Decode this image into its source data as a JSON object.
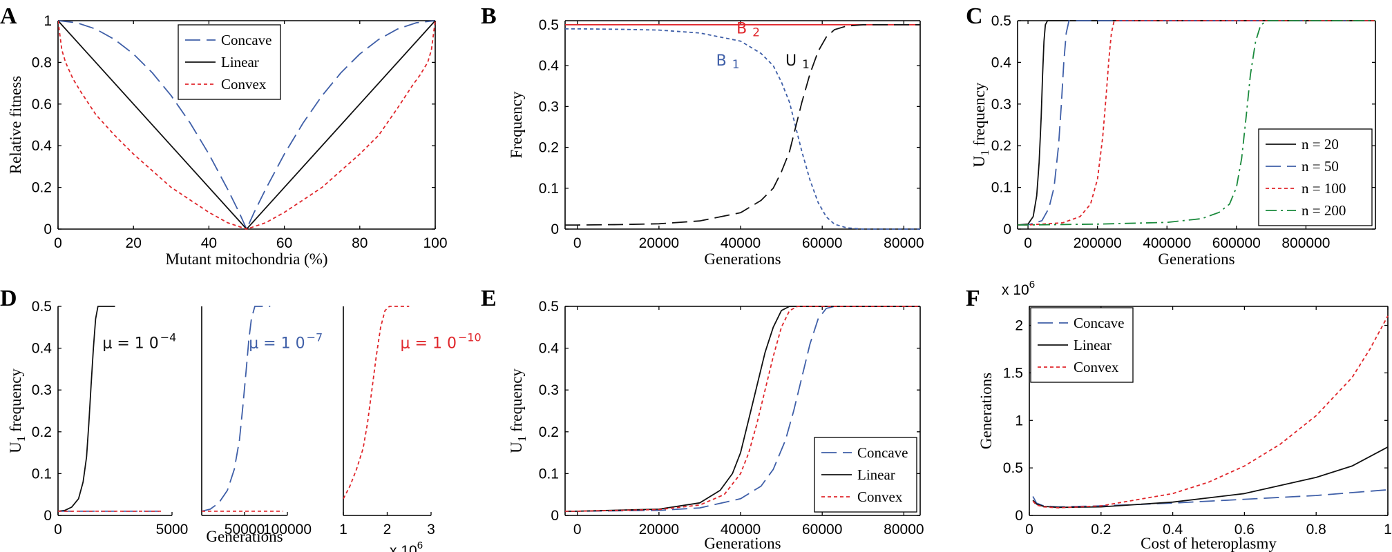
{
  "colors": {
    "blue": "#3f5fa8",
    "black": "#111111",
    "red": "#e0262b",
    "green": "#1a8a3c"
  },
  "chart_data": [
    {
      "id": "A",
      "panel_label": "A",
      "type": "line",
      "xlabel": "Mutant mitochondria (%)",
      "ylabel": "Relative fitness",
      "xlim": [
        0,
        100
      ],
      "ylim": [
        0,
        1
      ],
      "xticks": [
        0,
        20,
        40,
        60,
        80,
        100
      ],
      "yticks": [
        0,
        0.2,
        0.4,
        0.6,
        0.8,
        1
      ],
      "xtick_labels": [
        "0",
        "20",
        "40",
        "60",
        "80",
        "100"
      ],
      "ytick_labels": [
        "0",
        "0.2",
        "0.4",
        "0.6",
        "0.8",
        "1"
      ],
      "legend": {
        "placement": "top-center",
        "entries": [
          "Concave",
          "Linear",
          "Convex"
        ]
      },
      "series": [
        {
          "name": "Concave",
          "color": "blue",
          "style": "longdash",
          "x": [
            0,
            5,
            10,
            15,
            20,
            25,
            30,
            35,
            40,
            45,
            48,
            50,
            52,
            55,
            60,
            65,
            70,
            75,
            80,
            85,
            90,
            95,
            100
          ],
          "y": [
            1,
            0.99,
            0.96,
            0.91,
            0.84,
            0.75,
            0.64,
            0.51,
            0.36,
            0.19,
            0.08,
            0,
            0.08,
            0.19,
            0.36,
            0.51,
            0.64,
            0.75,
            0.84,
            0.91,
            0.96,
            0.99,
            1
          ]
        },
        {
          "name": "Linear",
          "color": "black",
          "style": "solid",
          "x": [
            0,
            50,
            100
          ],
          "y": [
            1,
            0,
            1
          ]
        },
        {
          "name": "Convex",
          "color": "red",
          "style": "dash",
          "x": [
            0,
            1,
            2,
            4,
            6,
            10,
            15,
            20,
            25,
            30,
            35,
            40,
            45,
            50,
            55,
            60,
            65,
            70,
            75,
            80,
            85,
            90,
            94,
            96,
            98,
            99,
            100
          ],
          "y": [
            1,
            0.86,
            0.8,
            0.72,
            0.66,
            0.55,
            0.45,
            0.36,
            0.28,
            0.2,
            0.14,
            0.08,
            0.03,
            0,
            0.03,
            0.08,
            0.14,
            0.2,
            0.28,
            0.36,
            0.45,
            0.58,
            0.69,
            0.74,
            0.8,
            0.86,
            1
          ]
        }
      ]
    },
    {
      "id": "B",
      "panel_label": "B",
      "type": "line",
      "xlabel": "Generations",
      "ylabel": "Frequency",
      "xlim": [
        -3000,
        84000
      ],
      "ylim": [
        0,
        0.51
      ],
      "xticks": [
        0,
        20000,
        40000,
        60000,
        80000
      ],
      "yticks": [
        0,
        0.1,
        0.2,
        0.3,
        0.4,
        0.5
      ],
      "xtick_labels": [
        "0",
        "20000",
        "40000",
        "60000",
        "80000"
      ],
      "ytick_labels": [
        "0",
        "0.1",
        "0.2",
        "0.3",
        "0.4",
        "0.5"
      ],
      "annotations": [
        {
          "text": "B",
          "sub": "2",
          "color": "red",
          "x": 39000,
          "y": 0.479
        },
        {
          "text": "B",
          "sub": "1",
          "color": "blue",
          "x": 34000,
          "y": 0.4
        },
        {
          "text": "U",
          "sub": "1",
          "color": "black",
          "x": 51000,
          "y": 0.4
        }
      ],
      "series": [
        {
          "name": "B2",
          "color": "red",
          "style": "solid",
          "x": [
            -3000,
            84000
          ],
          "y": [
            0.5,
            0.5
          ]
        },
        {
          "name": "B1",
          "color": "blue",
          "style": "dash",
          "x": [
            -3000,
            0,
            10000,
            20000,
            30000,
            40000,
            45000,
            48000,
            50000,
            52000,
            53500,
            55000,
            57000,
            59000,
            61000,
            63000,
            66000,
            70000,
            84000
          ],
          "y": [
            0.49,
            0.49,
            0.489,
            0.487,
            0.48,
            0.46,
            0.43,
            0.4,
            0.36,
            0.31,
            0.25,
            0.19,
            0.12,
            0.065,
            0.03,
            0.012,
            0.003,
            0,
            0
          ]
        },
        {
          "name": "U1",
          "color": "black",
          "style": "longdash",
          "x": [
            -3000,
            0,
            10000,
            20000,
            30000,
            40000,
            45000,
            48000,
            50000,
            52000,
            53500,
            55000,
            57000,
            59000,
            61000,
            63000,
            66000,
            70000,
            84000
          ],
          "y": [
            0.01,
            0.01,
            0.011,
            0.013,
            0.02,
            0.04,
            0.07,
            0.1,
            0.14,
            0.19,
            0.25,
            0.31,
            0.38,
            0.435,
            0.47,
            0.488,
            0.497,
            0.5,
            0.5
          ]
        }
      ]
    },
    {
      "id": "C",
      "panel_label": "C",
      "type": "line",
      "xlabel": "Generations",
      "ylabel": "U",
      "ylabel_sub": "1",
      "ylabel_tail": " frequency",
      "xlim": [
        -30000,
        1000000
      ],
      "ylim": [
        0,
        0.5
      ],
      "xticks": [
        0,
        200000,
        400000,
        600000,
        800000
      ],
      "yticks": [
        0,
        0.1,
        0.2,
        0.3,
        0.4,
        0.5
      ],
      "xtick_labels": [
        "0",
        "200000",
        "400000",
        "600000",
        "800000"
      ],
      "ytick_labels": [
        "0",
        "0.1",
        "0.2",
        "0.3",
        "0.4",
        "0.5"
      ],
      "legend": {
        "placement": "bottom-right",
        "entries": [
          "n = 20",
          "n = 50",
          "n = 100",
          "n = 200"
        ]
      },
      "series": [
        {
          "name": "n = 20",
          "color": "black",
          "style": "solid",
          "x": [
            -30000,
            0,
            15000,
            25000,
            32000,
            38000,
            42000,
            46000,
            50000,
            56000,
            1000000
          ],
          "y": [
            0.01,
            0.012,
            0.03,
            0.08,
            0.16,
            0.27,
            0.37,
            0.45,
            0.49,
            0.5,
            0.5
          ]
        },
        {
          "name": "n = 50",
          "color": "blue",
          "style": "longdash",
          "x": [
            -30000,
            0,
            40000,
            60000,
            75000,
            88000,
            96000,
            103000,
            110000,
            118000,
            1000000
          ],
          "y": [
            0.01,
            0.01,
            0.02,
            0.05,
            0.1,
            0.2,
            0.3,
            0.4,
            0.47,
            0.5,
            0.5
          ]
        },
        {
          "name": "n = 100",
          "color": "red",
          "style": "dash",
          "x": [
            -30000,
            0,
            100000,
            150000,
            180000,
            200000,
            215000,
            225000,
            233000,
            240000,
            248000,
            1000000
          ],
          "y": [
            0.01,
            0.01,
            0.015,
            0.03,
            0.06,
            0.12,
            0.22,
            0.32,
            0.41,
            0.47,
            0.5,
            0.5
          ]
        },
        {
          "name": "n = 200",
          "color": "green",
          "style": "dashdot",
          "x": [
            -30000,
            0,
            200000,
            400000,
            500000,
            550000,
            580000,
            600000,
            615000,
            628000,
            640000,
            655000,
            670000,
            690000,
            1000000
          ],
          "y": [
            0.01,
            0.01,
            0.012,
            0.016,
            0.025,
            0.04,
            0.06,
            0.1,
            0.17,
            0.27,
            0.37,
            0.45,
            0.49,
            0.5,
            0.5
          ]
        }
      ]
    },
    {
      "id": "D",
      "panel_label": "D",
      "type": "line",
      "group": "D",
      "ylabel": "U",
      "ylabel_sub": "1",
      "ylabel_tail": " frequency",
      "xlim": [
        0,
        5000
      ],
      "ylim": [
        0,
        0.5
      ],
      "xticks": [
        0,
        5000
      ],
      "yticks": [
        0,
        0.1,
        0.2,
        0.3,
        0.4,
        0.5
      ],
      "xtick_labels": [
        "0",
        "5000"
      ],
      "ytick_labels": [
        "0",
        "0.1",
        "0.2",
        "0.3",
        "0.4",
        "0.5"
      ],
      "annotations": [
        {
          "text": "μ = 1 0",
          "sup": "−4",
          "color": "black",
          "x": 1950,
          "y": 0.4
        }
      ],
      "series": [
        {
          "name": "μ = 10^-4",
          "color": "black",
          "style": "solid",
          "x": [
            0,
            300,
            600,
            900,
            1100,
            1250,
            1350,
            1450,
            1550,
            1650,
            1750,
            1850,
            2500
          ],
          "y": [
            0.01,
            0.012,
            0.02,
            0.04,
            0.08,
            0.14,
            0.22,
            0.31,
            0.4,
            0.47,
            0.5,
            0.5,
            0.5
          ]
        },
        {
          "name": "baseline-blue",
          "color": "blue",
          "style": "longdash",
          "x": [
            0,
            4600
          ],
          "y": [
            0.01,
            0.01
          ]
        },
        {
          "name": "baseline-red",
          "color": "red",
          "style": "dash",
          "x": [
            0,
            4600
          ],
          "y": [
            0.01,
            0.01
          ]
        }
      ]
    },
    {
      "id": "D2",
      "type": "line",
      "group": "D",
      "xlabel": "Generations",
      "xlim": [
        0,
        100000
      ],
      "ylim": [
        0,
        0.5
      ],
      "xticks": [
        50000,
        100000
      ],
      "xtick_labels": [
        "50000",
        "100000"
      ],
      "annotations": [
        {
          "text": "μ = 1 0",
          "sup": "−7",
          "color": "blue",
          "x": 55000,
          "y": 0.4
        }
      ],
      "series": [
        {
          "name": "μ = 10^-7",
          "color": "blue",
          "style": "longdash",
          "x": [
            0,
            10000,
            20000,
            30000,
            38000,
            44000,
            48000,
            52000,
            55000,
            58000,
            62000,
            66000,
            80000
          ],
          "y": [
            0.01,
            0.015,
            0.03,
            0.06,
            0.11,
            0.18,
            0.26,
            0.35,
            0.42,
            0.47,
            0.5,
            0.5,
            0.5
          ]
        },
        {
          "name": "baseline-red",
          "color": "red",
          "style": "dash",
          "x": [
            0,
            95000
          ],
          "y": [
            0.01,
            0.01
          ]
        }
      ]
    },
    {
      "id": "D3",
      "type": "line",
      "group": "D",
      "xlim": [
        1000000,
        3000000
      ],
      "ylim": [
        0,
        0.5
      ],
      "xticks": [
        1000000,
        2000000,
        3000000
      ],
      "xtick_labels": [
        "1",
        "2",
        "3"
      ],
      "x_multiplier": "x 10",
      "x_multiplier_exp": "6",
      "annotations": [
        {
          "text": "μ = 1 0",
          "sup": "−10",
          "color": "red",
          "x": 2300000,
          "y": 0.4
        }
      ],
      "series": [
        {
          "name": "μ = 10^-10",
          "color": "red",
          "style": "dash",
          "x": [
            1000000,
            1150000,
            1300000,
            1450000,
            1550000,
            1650000,
            1750000,
            1850000,
            1950000,
            2050000,
            2150000,
            2500000
          ],
          "y": [
            0.04,
            0.07,
            0.11,
            0.16,
            0.22,
            0.3,
            0.38,
            0.45,
            0.49,
            0.5,
            0.5,
            0.5
          ]
        }
      ]
    },
    {
      "id": "E",
      "panel_label": "E",
      "type": "line",
      "xlabel": "Generations",
      "ylabel": "U",
      "ylabel_sub": "1",
      "ylabel_tail": " frequency",
      "xlim": [
        -3000,
        84000
      ],
      "ylim": [
        0,
        0.5
      ],
      "xticks": [
        0,
        20000,
        40000,
        60000,
        80000
      ],
      "yticks": [
        0,
        0.1,
        0.2,
        0.3,
        0.4,
        0.5
      ],
      "xtick_labels": [
        "0",
        "20000",
        "40000",
        "60000",
        "80000"
      ],
      "ytick_labels": [
        "0",
        "0.1",
        "0.2",
        "0.3",
        "0.4",
        "0.5"
      ],
      "legend": {
        "placement": "bottom-right",
        "entries": [
          "Concave",
          "Linear",
          "Convex"
        ]
      },
      "series": [
        {
          "name": "Concave",
          "color": "blue",
          "style": "longdash",
          "x": [
            -3000,
            0,
            20000,
            30000,
            40000,
            45000,
            48000,
            51000,
            53000,
            55000,
            57000,
            59000,
            61000,
            63000,
            84000
          ],
          "y": [
            0.01,
            0.01,
            0.012,
            0.018,
            0.04,
            0.07,
            0.11,
            0.18,
            0.25,
            0.33,
            0.41,
            0.47,
            0.495,
            0.5,
            0.5
          ]
        },
        {
          "name": "Linear",
          "color": "black",
          "style": "solid",
          "x": [
            -3000,
            0,
            20000,
            30000,
            35000,
            38000,
            40000,
            42000,
            44000,
            46000,
            48000,
            50000,
            52000,
            84000
          ],
          "y": [
            0.01,
            0.01,
            0.015,
            0.03,
            0.06,
            0.1,
            0.15,
            0.23,
            0.31,
            0.39,
            0.45,
            0.49,
            0.5,
            0.5
          ]
        },
        {
          "name": "Convex",
          "color": "red",
          "style": "dash",
          "x": [
            -3000,
            0,
            20000,
            30000,
            36000,
            40000,
            42000,
            44000,
            46000,
            48000,
            50000,
            52000,
            54000,
            84000
          ],
          "y": [
            0.01,
            0.01,
            0.014,
            0.025,
            0.05,
            0.1,
            0.15,
            0.22,
            0.3,
            0.38,
            0.45,
            0.49,
            0.5,
            0.5
          ]
        }
      ]
    },
    {
      "id": "F",
      "panel_label": "F",
      "type": "line",
      "xlabel": "Cost of heteroplasmy",
      "ylabel": "Generations",
      "xlim": [
        0,
        1
      ],
      "ylim": [
        0,
        2200000
      ],
      "xticks": [
        0,
        0.2,
        0.4,
        0.6,
        0.8,
        1
      ],
      "yticks": [
        0,
        500000,
        1000000,
        1500000,
        2000000
      ],
      "xtick_labels": [
        "0",
        "0.2",
        "0.4",
        "0.6",
        "0.8",
        "1"
      ],
      "ytick_labels": [
        "0",
        "0.5",
        "1",
        "1.5",
        "2"
      ],
      "y_multiplier": "x 10",
      "y_multiplier_exp": "6",
      "legend": {
        "placement": "top-left",
        "entries": [
          "Concave",
          "Linear",
          "Convex"
        ]
      },
      "series": [
        {
          "name": "Concave",
          "color": "blue",
          "style": "longdash",
          "x": [
            0.01,
            0.02,
            0.04,
            0.08,
            0.2,
            0.4,
            0.6,
            0.8,
            1
          ],
          "y": [
            200000,
            130000,
            100000,
            90000,
            100000,
            130000,
            170000,
            210000,
            270000
          ]
        },
        {
          "name": "Linear",
          "color": "black",
          "style": "solid",
          "x": [
            0.01,
            0.02,
            0.04,
            0.08,
            0.2,
            0.4,
            0.6,
            0.8,
            0.9,
            1
          ],
          "y": [
            160000,
            120000,
            95000,
            85000,
            90000,
            140000,
            230000,
            400000,
            520000,
            720000
          ]
        },
        {
          "name": "Convex",
          "color": "red",
          "style": "dash",
          "x": [
            0.01,
            0.02,
            0.04,
            0.08,
            0.2,
            0.4,
            0.5,
            0.6,
            0.7,
            0.8,
            0.9,
            0.95,
            1
          ],
          "y": [
            150000,
            110000,
            90000,
            80000,
            100000,
            230000,
            350000,
            520000,
            750000,
            1050000,
            1450000,
            1750000,
            2100000
          ]
        }
      ]
    }
  ]
}
